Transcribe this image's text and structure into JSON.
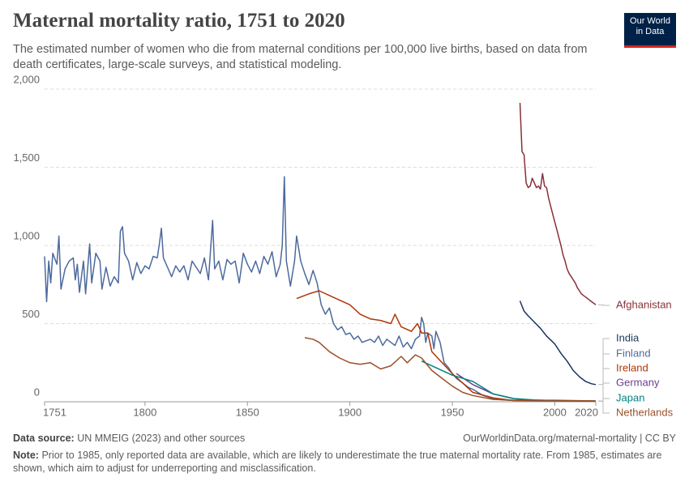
{
  "chart_data": {
    "type": "line",
    "title": "Maternal mortality ratio, 1751 to 2020",
    "subtitle": "The estimated number of women who die from maternal conditions per 100,000 live births, based on data from death certificates, large-scale surveys, and statistical modeling.",
    "xlim": [
      1751,
      2020
    ],
    "xticks": [
      1751,
      1800,
      1850,
      1900,
      1950,
      2000,
      2020
    ],
    "ylim": [
      0,
      2000
    ],
    "yticks": [
      0,
      500,
      {
        "value": 1000,
        "label": "1,000"
      },
      {
        "value": 1500,
        "label": "1,500"
      },
      {
        "value": 2000,
        "label": "2,000"
      }
    ],
    "grid": true,
    "series": [
      {
        "name": "Afghanistan",
        "color": "#883039",
        "x": [
          1983,
          1984,
          1985,
          1986,
          1987,
          1988,
          1989,
          1990,
          1991,
          1992,
          1993,
          1994,
          1995,
          1996,
          1997,
          1998,
          1999,
          2000,
          2001,
          2002,
          2003,
          2004,
          2005,
          2006,
          2007,
          2008,
          2009,
          2010,
          2011,
          2012,
          2013,
          2014,
          2015,
          2016,
          2017,
          2018,
          2019,
          2020
        ],
        "values": [
          1912,
          1600,
          1580,
          1400,
          1370,
          1380,
          1430,
          1400,
          1370,
          1380,
          1360,
          1460,
          1380,
          1370,
          1300,
          1250,
          1200,
          1150,
          1100,
          1050,
          1000,
          940,
          900,
          850,
          820,
          800,
          780,
          760,
          730,
          710,
          690,
          680,
          670,
          660,
          650,
          640,
          630,
          620
        ]
      },
      {
        "name": "India",
        "color": "#18355e",
        "x": [
          1983,
          1985,
          1987,
          1990,
          1993,
          1996,
          2000,
          2003,
          2006,
          2009,
          2012,
          2015,
          2018,
          2020
        ],
        "values": [
          645,
          580,
          550,
          510,
          470,
          420,
          370,
          310,
          260,
          200,
          160,
          130,
          115,
          110
        ]
      },
      {
        "name": "Finland",
        "color": "#4c6a9c",
        "x": [
          1751,
          1752,
          1753,
          1754,
          1755,
          1757,
          1758,
          1759,
          1761,
          1763,
          1765,
          1766,
          1767,
          1768,
          1770,
          1771,
          1773,
          1774,
          1776,
          1778,
          1779,
          1781,
          1783,
          1785,
          1787,
          1788,
          1789,
          1790,
          1792,
          1794,
          1796,
          1798,
          1800,
          1802,
          1804,
          1806,
          1807,
          1808,
          1809,
          1811,
          1813,
          1815,
          1817,
          1819,
          1821,
          1823,
          1825,
          1827,
          1829,
          1831,
          1833,
          1834,
          1836,
          1838,
          1840,
          1842,
          1844,
          1846,
          1848,
          1850,
          1852,
          1854,
          1856,
          1858,
          1860,
          1862,
          1864,
          1866,
          1867,
          1868,
          1869,
          1871,
          1873,
          1874,
          1876,
          1878,
          1880,
          1882,
          1884,
          1886,
          1888,
          1890,
          1892,
          1894,
          1896,
          1898,
          1900,
          1902,
          1904,
          1906,
          1908,
          1910,
          1912,
          1914,
          1916,
          1918,
          1920,
          1922,
          1924,
          1926,
          1928,
          1930,
          1932,
          1934,
          1935,
          1936,
          1937,
          1938,
          1940,
          1941,
          1942,
          1944,
          1946,
          1948,
          1950,
          1952,
          1955,
          1958,
          1960,
          1965,
          1970,
          1975,
          1980,
          1990,
          2000,
          2010,
          2020
        ],
        "values": [
          930,
          640,
          900,
          760,
          950,
          880,
          1060,
          720,
          850,
          900,
          920,
          780,
          880,
          700,
          900,
          690,
          1010,
          760,
          950,
          900,
          720,
          860,
          740,
          800,
          760,
          1090,
          1120,
          950,
          900,
          780,
          890,
          820,
          870,
          850,
          930,
          920,
          1010,
          1110,
          920,
          860,
          800,
          870,
          830,
          870,
          780,
          900,
          860,
          820,
          920,
          780,
          1160,
          850,
          900,
          780,
          910,
          880,
          900,
          760,
          950,
          880,
          830,
          900,
          820,
          930,
          880,
          960,
          800,
          880,
          1000,
          1440,
          900,
          740,
          900,
          1060,
          900,
          820,
          750,
          840,
          760,
          620,
          560,
          600,
          500,
          460,
          480,
          430,
          440,
          400,
          420,
          380,
          390,
          400,
          380,
          420,
          360,
          400,
          380,
          360,
          420,
          350,
          380,
          340,
          400,
          420,
          540,
          500,
          380,
          440,
          420,
          340,
          450,
          380,
          250,
          220,
          180,
          150,
          120,
          90,
          80,
          40,
          20,
          12,
          8,
          6,
          5,
          5,
          5
        ]
      },
      {
        "name": "Ireland",
        "color": "#b13507",
        "x": [
          1874,
          1880,
          1885,
          1890,
          1895,
          1900,
          1905,
          1910,
          1915,
          1920,
          1922,
          1925,
          1930,
          1933,
          1935,
          1938,
          1940,
          1945,
          1950,
          1955,
          1960,
          1970,
          1980,
          2000,
          2020
        ],
        "values": [
          660,
          690,
          710,
          680,
          650,
          620,
          560,
          530,
          520,
          500,
          560,
          480,
          450,
          500,
          440,
          440,
          320,
          250,
          180,
          120,
          60,
          25,
          8,
          6,
          5
        ]
      },
      {
        "name": "Germany",
        "color": "#6d3e91",
        "x": [
          1952,
          1960,
          1970,
          1980,
          1990,
          2000,
          2020
        ],
        "values": [
          180,
          110,
          50,
          20,
          8,
          6,
          4
        ]
      },
      {
        "name": "Japan",
        "color": "#00847e",
        "x": [
          1935,
          1950,
          1960,
          1970,
          1980,
          1990,
          2000,
          2020
        ],
        "values": [
          260,
          170,
          130,
          50,
          20,
          12,
          7,
          3
        ]
      },
      {
        "name": "Netherlands",
        "color": "#9a5129",
        "x": [
          1878,
          1882,
          1885,
          1890,
          1895,
          1900,
          1905,
          1910,
          1915,
          1920,
          1925,
          1928,
          1932,
          1935,
          1940,
          1945,
          1950,
          1955,
          1960,
          1970,
          1980,
          2000,
          2020
        ],
        "values": [
          410,
          400,
          380,
          320,
          280,
          250,
          240,
          250,
          210,
          230,
          290,
          250,
          300,
          280,
          200,
          150,
          100,
          60,
          40,
          15,
          10,
          10,
          5
        ]
      }
    ]
  },
  "footer": {
    "source_label": "Data source:",
    "source_text": "UN MMEIG (2023) and other sources",
    "url": "OurWorldinData.org/maternal-mortality | CC BY",
    "note_label": "Note:",
    "note_text": "Prior to 1985, only reported data are available, which are likely to underestimate the true maternal mortality rate. From 1985, estimates are shown, which aim to adjust for underreporting and misclassification."
  },
  "logo": {
    "line1": "Our World",
    "line2": "in Data"
  }
}
